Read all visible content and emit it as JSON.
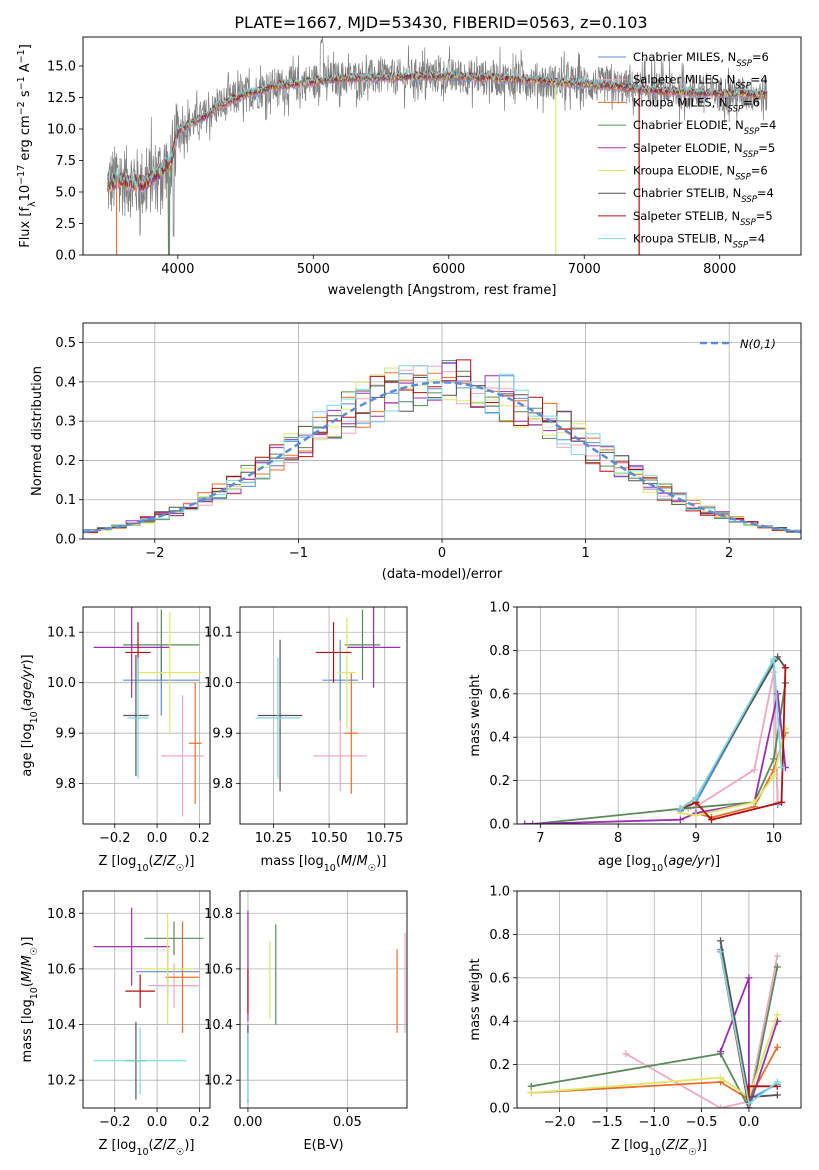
{
  "colors": {
    "chabrier_miles": "#5b8dd6",
    "salpeter_miles": "#f0a8c0",
    "kroupa_miles": "#e8702a",
    "chabrier_elodie": "#5a8a5a",
    "salpeter_elodie": "#9b2fb4",
    "kroupa_elodie": "#dde86a",
    "chabrier_stelib": "#555555",
    "salpeter_stelib": "#b01010",
    "kroupa_stelib": "#7fd8dc",
    "gaussian": "#5b8dd6",
    "grid": "#b0b0b0"
  },
  "chart_data": [
    {
      "type": "line",
      "title": "PLATE=1667, MJD=53430, FIBERID=0563, z=0.103",
      "xlabel": "wavelength [Angstrom, rest frame]",
      "ylabel": "Flux [fλ10⁻¹⁷ erg cm⁻² s⁻¹ A⁻¹]",
      "xlim": [
        3300,
        8600
      ],
      "ylim": [
        0,
        17.3
      ],
      "xticks": [
        4000,
        5000,
        6000,
        7000,
        8000
      ],
      "yticks": [
        0.0,
        2.5,
        5.0,
        7.5,
        10.0,
        12.5,
        15.0
      ],
      "legend_placement": "upper-right",
      "series": [
        {
          "name": "Chabrier MILES, N_SSP=6",
          "color": "#5b8dd6"
        },
        {
          "name": "Salpeter MILES, N_SSP=4",
          "color": "#f0a8c0"
        },
        {
          "name": "Kroupa MILES, N_SSP=6",
          "color": "#e8702a"
        },
        {
          "name": "Chabrier ELODIE, N_SSP=4",
          "color": "#5a8a5a"
        },
        {
          "name": "Salpeter ELODIE, N_SSP=5",
          "color": "#9b2fb4"
        },
        {
          "name": "Kroupa ELODIE, N_SSP=6",
          "color": "#dde86a"
        },
        {
          "name": "Chabrier STELIB, N_SSP=4",
          "color": "#555555"
        },
        {
          "name": "Salpeter STELIB, N_SSP=5",
          "color": "#b01010"
        },
        {
          "name": "Kroupa STELIB, N_SSP=4",
          "color": "#7fd8dc"
        }
      ],
      "continuum": {
        "x": [
          3480,
          3550,
          3650,
          3750,
          3850,
          3950,
          4000,
          4100,
          4200,
          4300,
          4400,
          4500,
          4600,
          4700,
          4800,
          4900,
          5000,
          5200,
          5400,
          5600,
          5800,
          6000,
          6200,
          6400,
          6600,
          6800,
          7000,
          7200,
          7400,
          7600,
          7800,
          8000,
          8200,
          8350
        ],
        "y": [
          5.5,
          6.0,
          5.8,
          5.6,
          6.5,
          7.5,
          9.8,
          10.5,
          11.0,
          11.8,
          12.3,
          12.8,
          13.0,
          13.4,
          13.5,
          13.6,
          13.8,
          14.0,
          14.1,
          14.1,
          14.2,
          14.2,
          14.1,
          14.0,
          13.9,
          13.7,
          13.6,
          13.4,
          13.2,
          13.0,
          12.9,
          12.8,
          12.8,
          12.7
        ]
      },
      "notes_visible": "spectral lines: Ca H&K near 3934/3968 drop to 0; spikes to 0 near 6790 and 7400"
    },
    {
      "type": "histogram",
      "xlabel": "(data-model)/error",
      "ylabel": "Normed distribution",
      "xlim": [
        -2.5,
        2.5
      ],
      "ylim": [
        0,
        0.55
      ],
      "xticks": [
        -2,
        -1,
        0,
        1,
        2
      ],
      "yticks": [
        0.0,
        0.1,
        0.2,
        0.3,
        0.4,
        0.5
      ],
      "legend": "N(0,1)",
      "legend_placement": "upper-right",
      "bin_width": 0.1,
      "gaussian": {
        "mean": 0,
        "sigma": 1
      }
    },
    {
      "type": "scatter",
      "name": "age_vs_Z",
      "xlabel": "Z [log10(Z/Z☉)]",
      "ylabel": "age  [log10(age/yr)]",
      "xlim": [
        -0.35,
        0.25
      ],
      "ylim": [
        9.72,
        10.15
      ],
      "xticks": [
        -0.2,
        0.0,
        0.2
      ],
      "yticks": [
        9.8,
        9.9,
        10.0,
        10.1
      ],
      "points": [
        {
          "x": 0.02,
          "y": 10.005,
          "xerr": 0.18,
          "yerr": 0.07,
          "color": "#5b8dd6"
        },
        {
          "x": 0.12,
          "y": 9.855,
          "xerr": 0.1,
          "yerr": 0.12,
          "color": "#f0a8c0"
        },
        {
          "x": 0.18,
          "y": 9.88,
          "xerr": 0.03,
          "yerr": 0.12,
          "color": "#e8702a"
        },
        {
          "x": 0.02,
          "y": 10.075,
          "xerr": 0.18,
          "yerr": 0.07,
          "color": "#5a8a5a"
        },
        {
          "x": -0.12,
          "y": 10.07,
          "xerr": 0.18,
          "yerr": 0.1,
          "color": "#9b2fb4"
        },
        {
          "x": 0.06,
          "y": 10.02,
          "xerr": 0.15,
          "yerr": 0.12,
          "color": "#dde86a"
        },
        {
          "x": -0.1,
          "y": 9.935,
          "xerr": 0.06,
          "yerr": 0.12,
          "color": "#555555"
        },
        {
          "x": -0.09,
          "y": 10.06,
          "xerr": 0.06,
          "yerr": 0.06,
          "color": "#b01010"
        },
        {
          "x": -0.09,
          "y": 9.93,
          "xerr": 0.05,
          "yerr": 0.12,
          "color": "#7fd8dc"
        }
      ]
    },
    {
      "type": "scatter",
      "name": "age_vs_mass",
      "xlabel": "mass [log10(M/M☉)]",
      "ylabel": "",
      "xlim": [
        10.1,
        10.85
      ],
      "ylim": [
        9.72,
        10.15
      ],
      "xticks": [
        10.25,
        10.5,
        10.75
      ],
      "yticks": [
        9.8,
        9.9,
        10.0,
        10.1
      ],
      "points": [
        {
          "x": 10.55,
          "y": 10.005,
          "xerr": 0.08,
          "yerr": 0.08,
          "color": "#5b8dd6"
        },
        {
          "x": 10.55,
          "y": 9.855,
          "xerr": 0.12,
          "yerr": 0.07,
          "color": "#f0a8c0"
        },
        {
          "x": 10.6,
          "y": 9.9,
          "xerr": 0.03,
          "yerr": 0.12,
          "color": "#e8702a"
        },
        {
          "x": 10.65,
          "y": 10.075,
          "xerr": 0.08,
          "yerr": 0.07,
          "color": "#5a8a5a"
        },
        {
          "x": 10.7,
          "y": 10.07,
          "xerr": 0.12,
          "yerr": 0.08,
          "color": "#9b2fb4"
        },
        {
          "x": 10.58,
          "y": 10.02,
          "xerr": 0.04,
          "yerr": 0.11,
          "color": "#dde86a"
        },
        {
          "x": 10.28,
          "y": 9.935,
          "xerr": 0.1,
          "yerr": 0.15,
          "color": "#555555"
        },
        {
          "x": 10.52,
          "y": 10.06,
          "xerr": 0.08,
          "yerr": 0.06,
          "color": "#b01010"
        },
        {
          "x": 10.27,
          "y": 9.93,
          "xerr": 0.1,
          "yerr": 0.12,
          "color": "#7fd8dc"
        }
      ]
    },
    {
      "type": "line",
      "name": "mass_weight_vs_age",
      "xlabel": "age  [log10(age/yr)]",
      "ylabel": "mass weight",
      "xlim": [
        6.7,
        10.35
      ],
      "ylim": [
        0.0,
        1.0
      ],
      "xticks": [
        7,
        8,
        9,
        10
      ],
      "yticks": [
        0.0,
        0.2,
        0.4,
        0.6,
        0.8,
        1.0
      ],
      "series": [
        {
          "color": "#5b8dd6",
          "x": [
            8.8,
            9.0,
            10.0,
            10.05
          ],
          "y": [
            0.06,
            0.1,
            0.75,
            0.09
          ]
        },
        {
          "color": "#f0a8c0",
          "x": [
            8.9,
            9.0,
            9.75,
            10.0,
            10.05
          ],
          "y": [
            0.07,
            0.08,
            0.25,
            0.7,
            0.1
          ]
        },
        {
          "color": "#e8702a",
          "x": [
            9.0,
            9.2,
            9.75,
            10.0,
            10.15
          ],
          "y": [
            0.05,
            0.03,
            0.08,
            0.25,
            0.42
          ]
        },
        {
          "color": "#5a8a5a",
          "x": [
            6.9,
            8.8,
            9.75,
            10.0,
            10.15
          ],
          "y": [
            0.0,
            0.07,
            0.1,
            0.3,
            0.65
          ]
        },
        {
          "color": "#9b2fb4",
          "x": [
            6.8,
            8.8,
            9.0,
            9.75,
            10.05,
            10.15
          ],
          "y": [
            0.0,
            0.02,
            0.05,
            0.1,
            0.6,
            0.26
          ]
        },
        {
          "color": "#dde86a",
          "x": [
            8.8,
            9.0,
            9.75,
            10.0,
            10.15
          ],
          "y": [
            0.05,
            0.04,
            0.1,
            0.22,
            0.44
          ]
        },
        {
          "color": "#555555",
          "x": [
            8.8,
            9.0,
            10.05,
            10.15
          ],
          "y": [
            0.07,
            0.12,
            0.77,
            0.72
          ]
        },
        {
          "color": "#b01010",
          "x": [
            8.8,
            9.0,
            9.2,
            10.1,
            10.15
          ],
          "y": [
            0.07,
            0.1,
            0.02,
            0.1,
            0.72
          ]
        },
        {
          "color": "#7fd8dc",
          "x": [
            8.8,
            9.0,
            10.0,
            10.1
          ],
          "y": [
            0.07,
            0.12,
            0.76,
            0.26
          ]
        }
      ]
    },
    {
      "type": "scatter",
      "name": "mass_vs_Z",
      "xlabel": "Z [log10(Z/Z☉)]",
      "ylabel": "mass [log10(M/M☉)]",
      "xlim": [
        -0.35,
        0.25
      ],
      "ylim": [
        10.1,
        10.88
      ],
      "xticks": [
        -0.2,
        0.0,
        0.2
      ],
      "yticks": [
        10.2,
        10.4,
        10.6,
        10.8
      ],
      "points": [
        {
          "x": 0.05,
          "y": 10.59,
          "xerr": 0.15,
          "yerr": 0.08,
          "color": "#5b8dd6"
        },
        {
          "x": 0.08,
          "y": 10.54,
          "xerr": 0.12,
          "yerr": 0.08,
          "color": "#f0a8c0"
        },
        {
          "x": 0.12,
          "y": 10.57,
          "xerr": 0.08,
          "yerr": 0.2,
          "color": "#e8702a"
        },
        {
          "x": 0.08,
          "y": 10.71,
          "xerr": 0.14,
          "yerr": 0.06,
          "color": "#5a8a5a"
        },
        {
          "x": -0.12,
          "y": 10.68,
          "xerr": 0.18,
          "yerr": 0.14,
          "color": "#9b2fb4"
        },
        {
          "x": 0.05,
          "y": 10.6,
          "xerr": 0.12,
          "yerr": 0.2,
          "color": "#dde86a"
        },
        {
          "x": -0.1,
          "y": 10.27,
          "xerr": 0.05,
          "yerr": 0.14,
          "color": "#555555"
        },
        {
          "x": -0.08,
          "y": 10.52,
          "xerr": 0.07,
          "yerr": 0.06,
          "color": "#b01010"
        },
        {
          "x": -0.08,
          "y": 10.27,
          "xerr": 0.22,
          "yerr": 0.12,
          "color": "#7fd8dc"
        }
      ]
    },
    {
      "type": "scatter",
      "name": "mass_vs_ebv",
      "xlabel": "E(B-V)",
      "ylabel": "",
      "xlim": [
        -0.004,
        0.08
      ],
      "ylim": [
        10.1,
        10.88
      ],
      "xticks": [
        0.0,
        0.05
      ],
      "xtick_labels": [
        "0.00",
        "0.05"
      ],
      "yticks": [
        10.2,
        10.4,
        10.6,
        10.8
      ],
      "points": [
        {
          "x": 0.0,
          "y": 10.26,
          "yerr": 0.14,
          "color": "#5b8dd6"
        },
        {
          "x": 0.079,
          "y": 10.55,
          "yerr": 0.18,
          "color": "#f0a8c0"
        },
        {
          "x": 0.075,
          "y": 10.52,
          "yerr": 0.15,
          "color": "#e8702a"
        },
        {
          "x": 0.014,
          "y": 10.58,
          "yerr": 0.18,
          "color": "#5a8a5a"
        },
        {
          "x": 0.0,
          "y": 10.61,
          "yerr": 0.2,
          "color": "#9b2fb4"
        },
        {
          "x": 0.011,
          "y": 10.56,
          "yerr": 0.14,
          "color": "#dde86a"
        },
        {
          "x": 0.0,
          "y": 10.3,
          "yerr": 0.1,
          "color": "#555555"
        },
        {
          "x": 0.0,
          "y": 10.52,
          "yerr": 0.08,
          "color": "#b01010"
        },
        {
          "x": 0.0,
          "y": 10.25,
          "yerr": 0.12,
          "color": "#7fd8dc"
        }
      ]
    },
    {
      "type": "line",
      "name": "mass_weight_vs_Z",
      "xlabel": "Z [log10(Z/Z☉)]",
      "ylabel": "mass weight",
      "xlim": [
        -2.45,
        0.55
      ],
      "ylim": [
        0.0,
        1.0
      ],
      "xticks": [
        -2.0,
        -1.5,
        -1.0,
        -0.5,
        0.0
      ],
      "yticks": [
        0.0,
        0.2,
        0.4,
        0.6,
        0.8,
        1.0
      ],
      "series": [
        {
          "color": "#5b8dd6",
          "x": [
            -0.3,
            0.0,
            0.3
          ],
          "y": [
            0.73,
            0.04,
            0.11
          ]
        },
        {
          "color": "#f0a8c0",
          "x": [
            -1.3,
            -0.3,
            0.0,
            0.3
          ],
          "y": [
            0.25,
            0.0,
            0.03,
            0.7
          ]
        },
        {
          "color": "#e8702a",
          "x": [
            -2.3,
            -0.3,
            0.0,
            0.3
          ],
          "y": [
            0.07,
            0.12,
            0.04,
            0.28
          ]
        },
        {
          "color": "#5a8a5a",
          "x": [
            -2.3,
            -0.3,
            0.0,
            0.3
          ],
          "y": [
            0.1,
            0.25,
            0.0,
            0.65
          ]
        },
        {
          "color": "#9b2fb4",
          "x": [
            -0.3,
            0.0,
            0.0,
            0.3
          ],
          "y": [
            0.26,
            0.6,
            0.0,
            0.4
          ]
        },
        {
          "color": "#dde86a",
          "x": [
            -2.3,
            -0.3,
            0.0,
            0.3
          ],
          "y": [
            0.07,
            0.14,
            0.05,
            0.43
          ]
        },
        {
          "color": "#555555",
          "x": [
            -0.3,
            0.0,
            0.3
          ],
          "y": [
            0.77,
            0.05,
            0.06
          ]
        },
        {
          "color": "#b01010",
          "x": [
            -0.3,
            0.0,
            0.0,
            0.3
          ],
          "y": [
            0.72,
            0.0,
            0.1,
            0.1
          ]
        },
        {
          "color": "#7fd8dc",
          "x": [
            -0.3,
            0.0,
            0.3
          ],
          "y": [
            0.72,
            0.02,
            0.12
          ]
        }
      ]
    }
  ]
}
